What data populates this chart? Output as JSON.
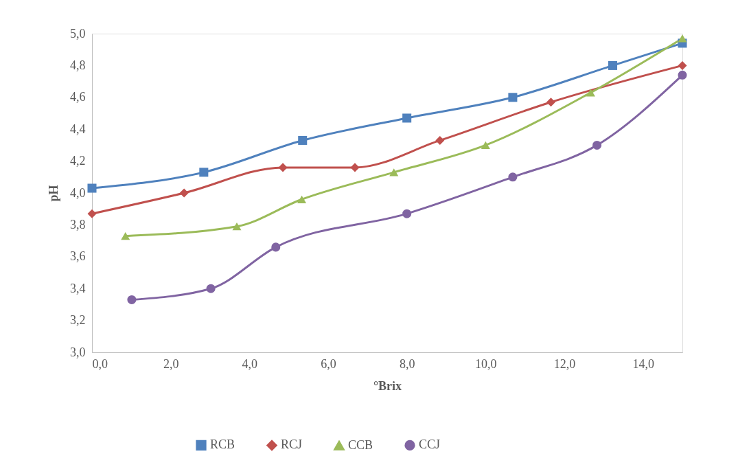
{
  "chart_data": {
    "type": "line",
    "xlabel": "°Brix",
    "ylabel": "pH",
    "xlim": [
      0,
      15
    ],
    "ylim": [
      3.0,
      5.0
    ],
    "xticks": [
      {
        "value": 0,
        "label": "0,0"
      },
      {
        "value": 2,
        "label": "2,0"
      },
      {
        "value": 4,
        "label": "4,0"
      },
      {
        "value": 6,
        "label": "6,0"
      },
      {
        "value": 8,
        "label": "8,0"
      },
      {
        "value": 10,
        "label": "10,0"
      },
      {
        "value": 12,
        "label": "12,0"
      },
      {
        "value": 14,
        "label": "14,0"
      }
    ],
    "yticks": [
      {
        "value": 3.0,
        "label": "3,0"
      },
      {
        "value": 3.2,
        "label": "3,2"
      },
      {
        "value": 3.4,
        "label": "3,4"
      },
      {
        "value": 3.6,
        "label": "3,6"
      },
      {
        "value": 3.8,
        "label": "3,8"
      },
      {
        "value": 4.0,
        "label": "4,0"
      },
      {
        "value": 4.2,
        "label": "4,2"
      },
      {
        "value": 4.4,
        "label": "4,4"
      },
      {
        "value": 4.6,
        "label": "4,6"
      },
      {
        "value": 4.8,
        "label": "4,8"
      },
      {
        "value": 5.0,
        "label": "5,0"
      }
    ],
    "grid": false,
    "legend": "bottom",
    "line_style": "solid",
    "series": [
      {
        "name": "RCB",
        "color": "#4f81bd",
        "marker": "square",
        "x": [
          0,
          2.84,
          5.35,
          8.0,
          10.69,
          13.23,
          15.0
        ],
        "values": [
          4.03,
          4.13,
          4.33,
          4.47,
          4.6,
          4.8,
          4.94
        ]
      },
      {
        "name": "RCJ",
        "color": "#c0504d",
        "marker": "diamond",
        "x": [
          0,
          2.34,
          4.85,
          6.68,
          8.84,
          11.66,
          15.0
        ],
        "values": [
          3.87,
          4.0,
          4.16,
          4.16,
          4.33,
          4.57,
          4.8
        ]
      },
      {
        "name": "CCB",
        "color": "#9bbb59",
        "marker": "triangle",
        "x": [
          0.85,
          3.68,
          5.33,
          7.67,
          10.0,
          12.67,
          15.0
        ],
        "values": [
          3.73,
          3.79,
          3.96,
          4.13,
          4.3,
          4.63,
          4.97
        ]
      },
      {
        "name": "CCJ",
        "color": "#8064a2",
        "marker": "circle",
        "x": [
          1.01,
          3.02,
          4.67,
          8.0,
          10.69,
          12.83,
          15.0
        ],
        "values": [
          3.33,
          3.4,
          3.66,
          3.87,
          4.1,
          4.3,
          4.74
        ]
      }
    ]
  }
}
